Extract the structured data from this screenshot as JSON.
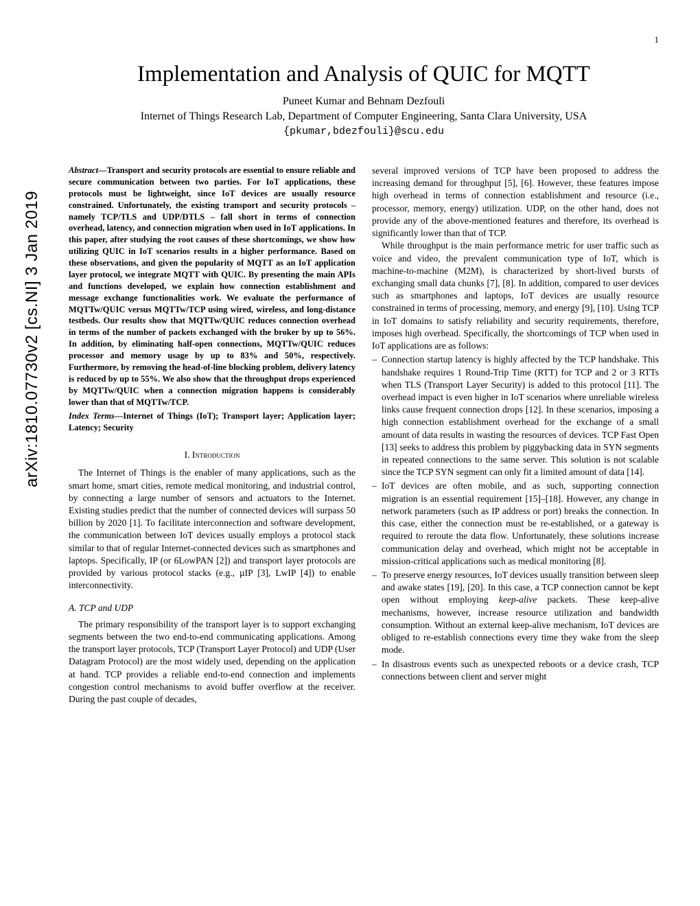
{
  "page_number": "1",
  "arxiv_id": "arXiv:1810.07730v2  [cs.NI]  3 Jan 2019",
  "title": "Implementation and Analysis of QUIC for MQTT",
  "authors": "Puneet Kumar and Behnam Dezfouli",
  "affiliation": "Internet of Things Research Lab, Department of Computer Engineering, Santa Clara University, USA",
  "email": "{pkumar,bdezfouli}@scu.edu",
  "abstract_label": "Abstract",
  "abstract_body": "—Transport and security protocols are essential to ensure reliable and secure communication between two parties. For IoT applications, these protocols must be lightweight, since IoT devices are usually resource constrained. Unfortunately, the existing transport and security protocols – namely TCP/TLS and UDP/DTLS – fall short in terms of connection overhead, latency, and connection migration when used in IoT applications. In this paper, after studying the root causes of these shortcomings, we show how utilizing QUIC in IoT scenarios results in a higher performance. Based on these observations, and given the popularity of MQTT as an IoT application layer protocol, we integrate MQTT with QUIC. By presenting the main APIs and functions developed, we explain how connection establishment and message exchange functionalities work. We evaluate the performance of MQTTw/QUIC versus MQTTw/TCP using wired, wireless, and long-distance testbeds. Our results show that MQTTw/QUIC reduces connection overhead in terms of the number of packets exchanged with the broker by up to 56%. In addition, by eliminating half-open connections, MQTTw/QUIC reduces processor and memory usage by up to 83% and 50%, respectively. Furthermore, by removing the head-of-line blocking problem, delivery latency is reduced by up to 55%. We also show that the throughput drops experienced by MQTTw/QUIC when a connection migration happens is considerably lower than that of MQTTw/TCP.",
  "indexterms_label": "Index Terms",
  "indexterms_body": "—Internet of Things (IoT); Transport layer; Application layer; Latency; Security",
  "section1_heading": "I. Introduction",
  "intro_p1": "The Internet of Things is the enabler of many applications, such as the smart home, smart cities, remote medical monitoring, and industrial control, by connecting a large number of sensors and actuators to the Internet. Existing studies predict that the number of connected devices will surpass 50 billion by 2020 [1]. To facilitate interconnection and software development, the communication between IoT devices usually employs a protocol stack similar to that of regular Internet-connected devices such as smartphones and laptops. Specifically, IP (or 6LowPAN [2]) and transport layer protocols are provided by various protocol stacks (e.g., µIP [3], LwIP [4]) to enable interconnectivity.",
  "section1a_heading": "A. TCP and UDP",
  "tcpudp_p1": "The primary responsibility of the transport layer is to support exchanging segments between the two end-to-end communicating applications. Among the transport layer protocols, TCP (Transport Layer Protocol) and UDP (User Datagram Protocol) are the most widely used, depending on the application at hand. TCP provides a reliable end-to-end connection and implements congestion control mechanisms to avoid buffer overflow at the receiver. During the past couple of decades,",
  "col2_p1": "several improved versions of TCP have been proposed to address the increasing demand for throughput [5], [6]. However, these features impose high overhead in terms of connection establishment and resource (i.e., processor, memory, energy) utilization. UDP, on the other hand, does not provide any of the above-mentioned features and therefore, its overhead is significantly lower than that of TCP.",
  "col2_p2": "While throughput is the main performance metric for user traffic such as voice and video, the prevalent communication type of IoT, which is machine-to-machine (M2M), is characterized by short-lived bursts of exchanging small data chunks [7], [8]. In addition, compared to user devices such as smartphones and laptops, IoT devices are usually resource constrained in terms of processing, memory, and energy [9], [10]. Using TCP in IoT domains to satisfy reliability and security requirements, therefore, imposes high overhead. Specifically, the shortcomings of TCP when used in IoT applications are as follows:",
  "bullet1": "Connection startup latency is highly affected by the TCP handshake. This handshake requires 1 Round-Trip Time (RTT) for TCP and 2 or 3 RTTs when TLS (Transport Layer Security) is added to this protocol [11]. The overhead impact is even higher in IoT scenarios where unreliable wireless links cause frequent connection drops [12]. In these scenarios, imposing a high connection establishment overhead for the exchange of a small amount of data results in wasting the resources of devices. TCP Fast Open [13] seeks to address this problem by piggybacking data in SYN segments in repeated connections to the same server. This solution is not scalable since the TCP SYN segment can only fit a limited amount of data [14].",
  "bullet2": "IoT devices are often mobile, and as such, supporting connection migration is an essential requirement [15]–[18]. However, any change in network parameters (such as IP address or port) breaks the connection. In this case, either the connection must be re-established, or a gateway is required to reroute the data flow. Unfortunately, these solutions increase communication delay and overhead, which might not be acceptable in mission-critical applications such as medical monitoring [8].",
  "bullet3_a": "To preserve energy resources, IoT devices usually transition between sleep and awake states [19], [20]. In this case, a TCP connection cannot be kept open without employing ",
  "bullet3_keepalive": "keep-alive",
  "bullet3_b": " packets. These keep-alive mechanisms, however, increase resource utilization and bandwidth consumption. Without an external keep-alive mechanism, IoT devices are obliged to re-establish connections every time they wake from the sleep mode.",
  "bullet4": "In disastrous events such as unexpected reboots or a device crash, TCP connections between client and server might"
}
